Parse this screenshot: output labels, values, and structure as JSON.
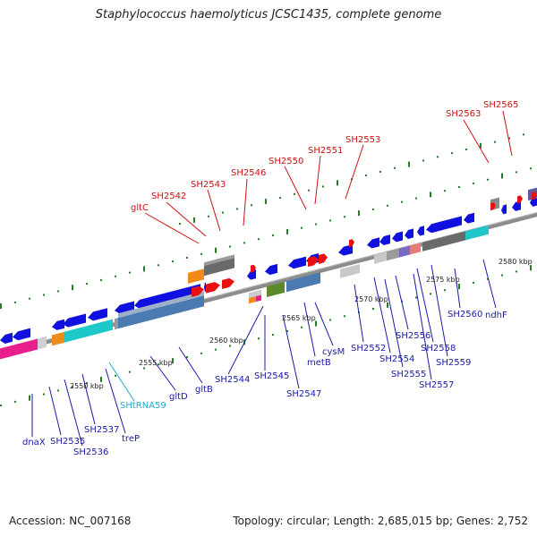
{
  "title": "Staphylococcus haemolyticus JCSC1435, complete genome",
  "footer": {
    "accession": "Accession: NC_007168",
    "summary": "Topology: circular; Length: 2,685,015 bp; Genes: 2,752"
  },
  "colors": {
    "blue_gene": "#1010e0",
    "red_gene": "#e81010",
    "grey_axis": "#8a8a8a",
    "label_blue": "#1a1aa8",
    "label_red": "#cc1111",
    "label_cyan": "#22aacc",
    "tick_green": "#2a7a2a"
  },
  "scale_labels": [
    "2550 kbp",
    "2555 kbp",
    "2560 kbp",
    "2565 kbp",
    "2570 kbp",
    "2575 kbp",
    "2580 kbp"
  ],
  "labels_bottom": [
    "dnaX",
    "SH2535",
    "SH2536",
    "SH2537",
    "treP",
    "SHtRNA59",
    "gltD",
    "gltB",
    "SH2544",
    "SH2545",
    "SH2547",
    "metB",
    "cysM",
    "SH2552",
    "SH2554",
    "SH2555",
    "SH2556",
    "SH2557",
    "SH2558",
    "SH2559",
    "SH2560",
    "ndhF"
  ],
  "labels_top": [
    "gltC",
    "SH2542",
    "SH2543",
    "SH2546",
    "SH2550",
    "SH2551",
    "SH2553",
    "SH2563",
    "SH2565"
  ]
}
